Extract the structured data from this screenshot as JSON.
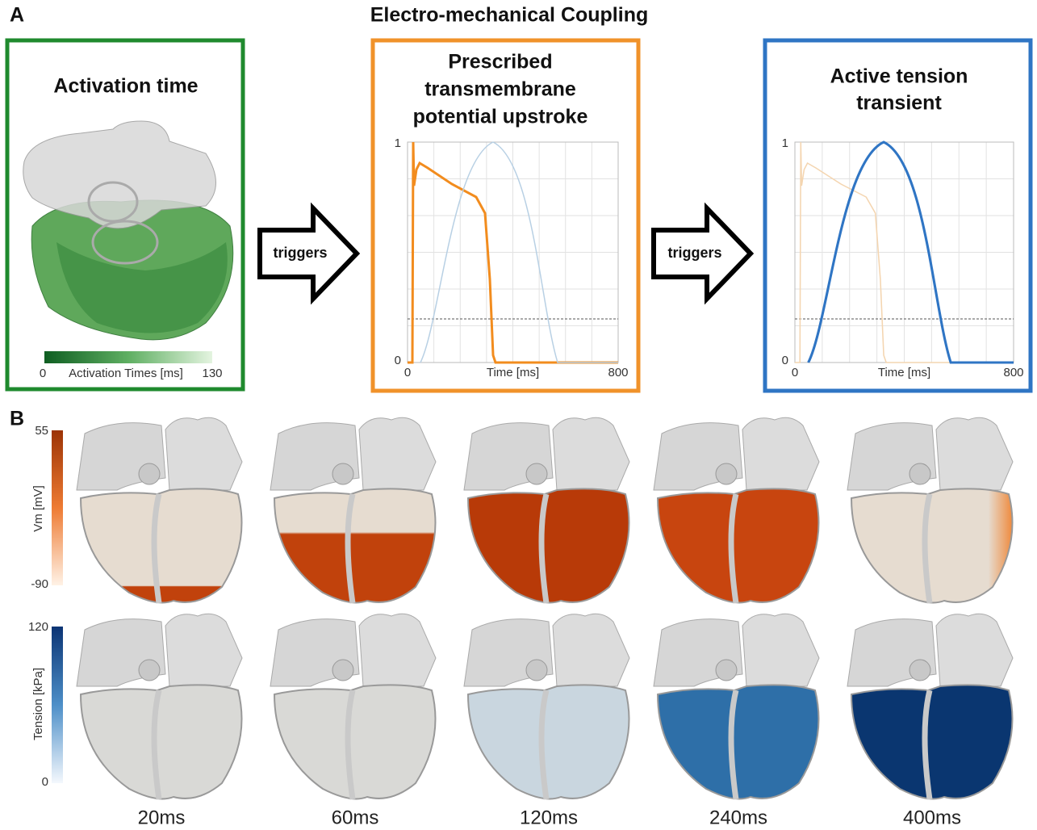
{
  "panel_a": {
    "label": "A",
    "title": "Electro-mechanical Coupling",
    "activation": {
      "title": "Activation time",
      "colorbar": {
        "min": 0,
        "label": "Activation Times [ms]",
        "max": 130
      }
    },
    "arrows": [
      "triggers",
      "triggers"
    ],
    "potential": {
      "title_lines": [
        "Prescribed",
        "transmembrane",
        "potential upstroke"
      ],
      "y_top": 1,
      "y_bottom": 0,
      "x_left": 0,
      "x_label": "Time [ms]",
      "x_right": 800
    },
    "tension": {
      "title_lines": [
        "Active tension",
        "transient"
      ],
      "y_top": 1,
      "y_bottom": 0,
      "x_left": 0,
      "x_label": "Time [ms]",
      "x_right": 800
    }
  },
  "panel_b": {
    "label": "B",
    "vm_bar": {
      "max": 55,
      "label": "Vm [mV]",
      "min": -90
    },
    "tension_bar": {
      "max": 120,
      "label": "Tension [kPa]",
      "min": 0
    },
    "times": [
      "20ms",
      "60ms",
      "120ms",
      "240ms",
      "400ms"
    ]
  }
}
